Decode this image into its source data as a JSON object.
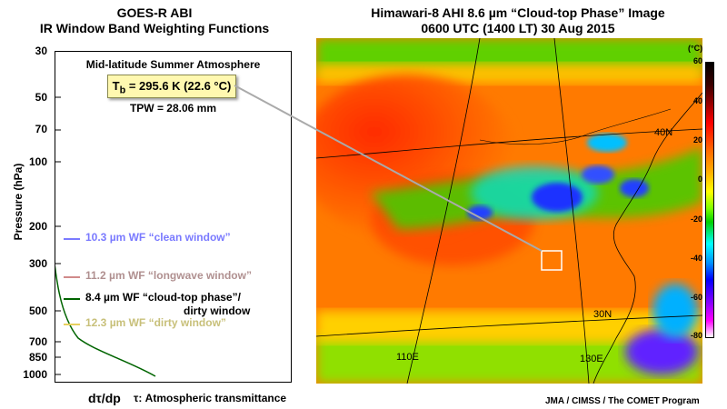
{
  "left_title": [
    "GOES-R ABI",
    "IR Window Band Weighting Functions"
  ],
  "right_title": [
    "Himawari-8 AHI 8.6 µm “Cloud-top Phase” Image",
    "0600 UTC (1400 LT)  30 Aug 2015"
  ],
  "plot": {
    "atmosphere_label": "Mid-latitude Summer Atmosphere",
    "tb_label": "T",
    "tb_sub": "b",
    "tb_value": " = 295.6 K (22.6 °C)",
    "tpw_label": "TPW = 28.06 mm",
    "y_axis_label": "Pressure (hPa)",
    "y_ticks": [
      "30",
      "50",
      "70",
      "100",
      "200",
      "300",
      "500",
      "700",
      "850",
      "1000"
    ],
    "x_label_a": "dτ/dp",
    "x_label_b": "τ: Atmospheric transmittance",
    "legend": [
      {
        "text": "10.3 µm WF “clean window”",
        "color": "#7a7aff"
      },
      {
        "text": "11.2 µm WF “longwave window”",
        "color": "#d08a8a"
      },
      {
        "text": "8.4 µm WF “cloud-top phase”/",
        "text2": "dirty window",
        "color": "#006400"
      },
      {
        "text": "12.3 µm WF “dirty window”",
        "color": "#e8d060"
      }
    ]
  },
  "colorbar": {
    "unit": "(°C)",
    "ticks": [
      "60",
      "40",
      "20",
      "0",
      "-20",
      "-40",
      "-60",
      "-80"
    ]
  },
  "map_labels": {
    "lat_40": "40N",
    "lat_30": "30N",
    "lon_110": "110E",
    "lon_130": "130E"
  },
  "credit": "JMA / CIMSS / The COMET Program"
}
